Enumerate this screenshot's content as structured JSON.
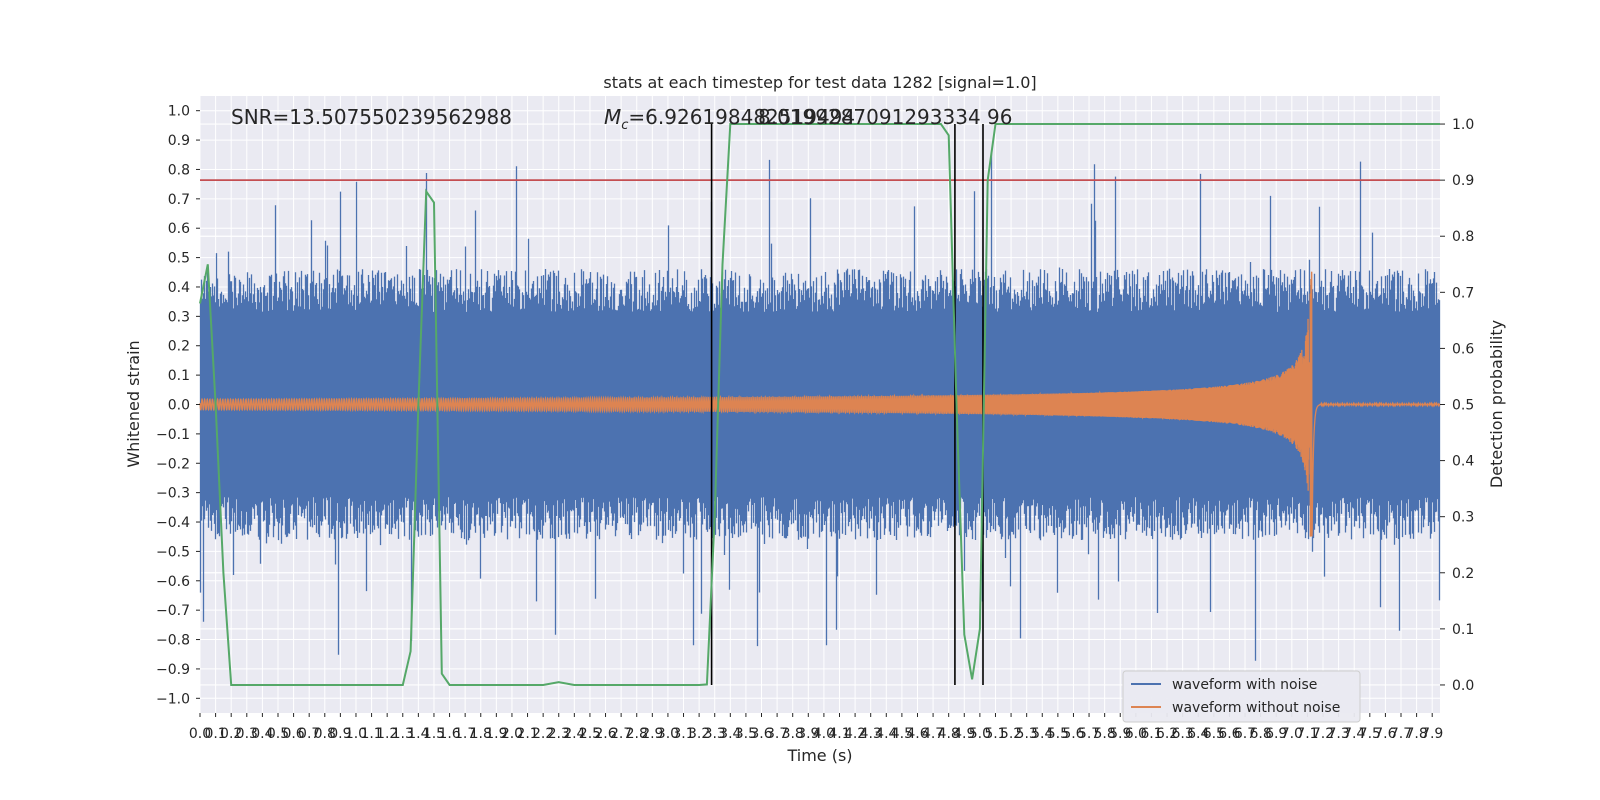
{
  "chart_data": {
    "type": "line",
    "title": "stats at each timestep for test data 1282 [signal=1.0]",
    "xlabel": "Time (s)",
    "ylabel": "Whitened strain",
    "y2label": "Detection probability",
    "xlim": [
      0.0,
      7.95
    ],
    "ylim": [
      -1.05,
      1.05
    ],
    "y2lim": [
      -0.05,
      1.05
    ],
    "x_ticks": [
      0.0,
      0.1,
      0.2,
      0.3,
      0.4,
      0.5,
      0.6,
      0.7,
      0.8,
      0.9,
      1.0,
      1.1,
      1.2,
      1.3,
      1.4,
      1.5,
      1.6,
      1.7,
      1.8,
      1.9,
      2.0,
      2.1,
      2.2,
      2.3,
      2.4,
      2.5,
      2.6,
      2.7,
      2.8,
      2.9,
      3.0,
      3.1,
      3.2,
      3.3,
      3.4,
      3.5,
      3.6,
      3.7,
      3.8,
      3.9,
      4.0,
      4.1,
      4.2,
      4.3,
      4.4,
      4.5,
      4.6,
      4.7,
      4.8,
      4.9,
      5.0,
      5.1,
      5.2,
      5.3,
      5.4,
      5.5,
      5.6,
      5.7,
      5.8,
      5.9,
      6.0,
      6.1,
      6.2,
      6.3,
      6.4,
      6.5,
      6.6,
      6.7,
      6.8,
      6.9,
      7.0,
      7.1,
      7.2,
      7.3,
      7.4,
      7.5,
      7.6,
      7.7,
      7.8,
      7.9
    ],
    "y_ticks": [
      -1.0,
      -0.9,
      -0.8,
      -0.7,
      -0.6,
      -0.5,
      -0.4,
      -0.3,
      -0.2,
      -0.1,
      0.0,
      0.1,
      0.2,
      0.3,
      0.4,
      0.5,
      0.6,
      0.7,
      0.8,
      0.9,
      1.0
    ],
    "y2_ticks": [
      0.0,
      0.1,
      0.2,
      0.3,
      0.4,
      0.5,
      0.6,
      0.7,
      0.8,
      0.9,
      1.0
    ],
    "annotations": {
      "snr": "SNR=13.507550239562988",
      "mc_symbol": "M",
      "mc_sub": "c",
      "mc_value": "=6.926198482519494",
      "overlap_text": "8.0199287091293334 96"
    },
    "threshold": {
      "name": "detection threshold",
      "value": 0.9,
      "axis": "right",
      "color": "#c44e52"
    },
    "vertical_lines": [
      3.28,
      4.84,
      5.02
    ],
    "merger_time": 7.13,
    "series": [
      {
        "name": "waveform with noise",
        "color": "#4c72b0",
        "noise_amplitude": 0.42,
        "peak_amplitude": 0.98
      },
      {
        "name": "waveform without noise",
        "color": "#dd8452",
        "amplitude_start": 0.018,
        "amplitude_peak": 0.45
      },
      {
        "name": "detection probability",
        "color": "#55a868",
        "axis": "right",
        "x": [
          0.0,
          0.05,
          0.1,
          0.15,
          0.2,
          0.3,
          0.5,
          1.0,
          1.3,
          1.35,
          1.4,
          1.45,
          1.5,
          1.55,
          1.6,
          1.65,
          1.7,
          2.0,
          2.2,
          2.3,
          2.4,
          2.6,
          3.0,
          3.2,
          3.25,
          3.3,
          3.35,
          3.4,
          3.5,
          4.0,
          4.5,
          4.75,
          4.8,
          4.85,
          4.9,
          4.95,
          5.0,
          5.05,
          5.1,
          5.5,
          6.0,
          7.0,
          7.95
        ],
        "y": [
          0.68,
          0.75,
          0.5,
          0.2,
          0.0,
          0.0,
          0.0,
          0.0,
          0.0,
          0.06,
          0.5,
          0.88,
          0.86,
          0.02,
          0.0,
          0.0,
          0.0,
          0.0,
          0.0,
          0.005,
          0.0,
          0.0,
          0.0,
          0.0,
          0.001,
          0.3,
          0.75,
          1.0,
          1.0,
          1.0,
          1.0,
          1.0,
          0.98,
          0.5,
          0.09,
          0.01,
          0.1,
          0.9,
          1.0,
          1.0,
          1.0,
          1.0,
          1.0
        ]
      }
    ]
  }
}
